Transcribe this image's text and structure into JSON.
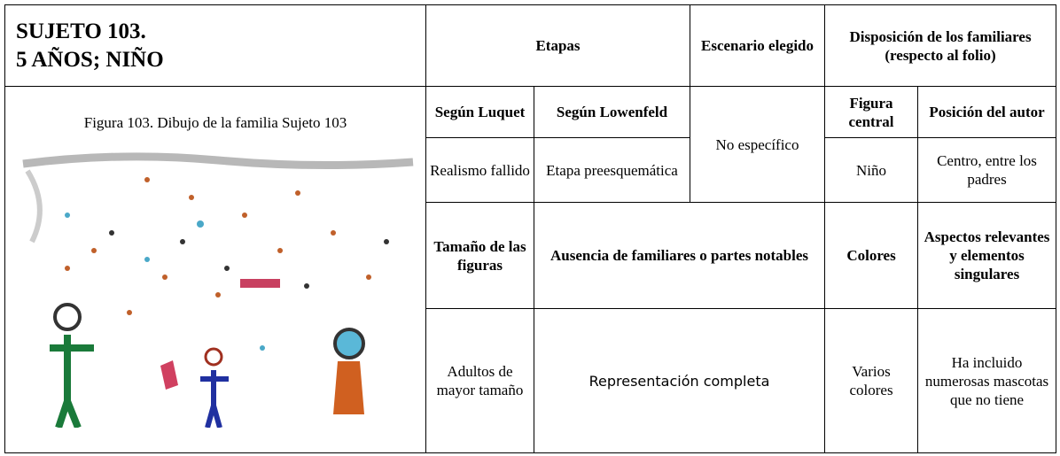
{
  "header": {
    "title_lines": [
      "SUJETO 103.",
      "5 AÑOS; NIÑO"
    ],
    "etapas": "Etapas",
    "escenario": "Escenario elegido",
    "disposicion_lines": [
      "Disposición de los familiares",
      "(respecto al folio)"
    ]
  },
  "figure": {
    "caption": "Figura 103. Dibujo de la familia Sujeto 103"
  },
  "table": {
    "subheaders": [
      "Según Luquet",
      "Según Lowenfeld",
      "Figura central",
      "Posición del autor"
    ],
    "row1": [
      "Realismo fallido",
      "Etapa preesquemática",
      "No específico",
      "Niño",
      "Centro, entre los padres"
    ],
    "headers2": [
      "Tamaño de las figuras",
      "Ausencia de familiares o partes notables",
      "Colores",
      "Aspectos relevantes y elementos singulares"
    ],
    "row2": [
      "Adultos de mayor tamaño",
      "Representación completa",
      "Varios colores",
      "Ha incluido numerosas mascotas que no tiene"
    ]
  }
}
